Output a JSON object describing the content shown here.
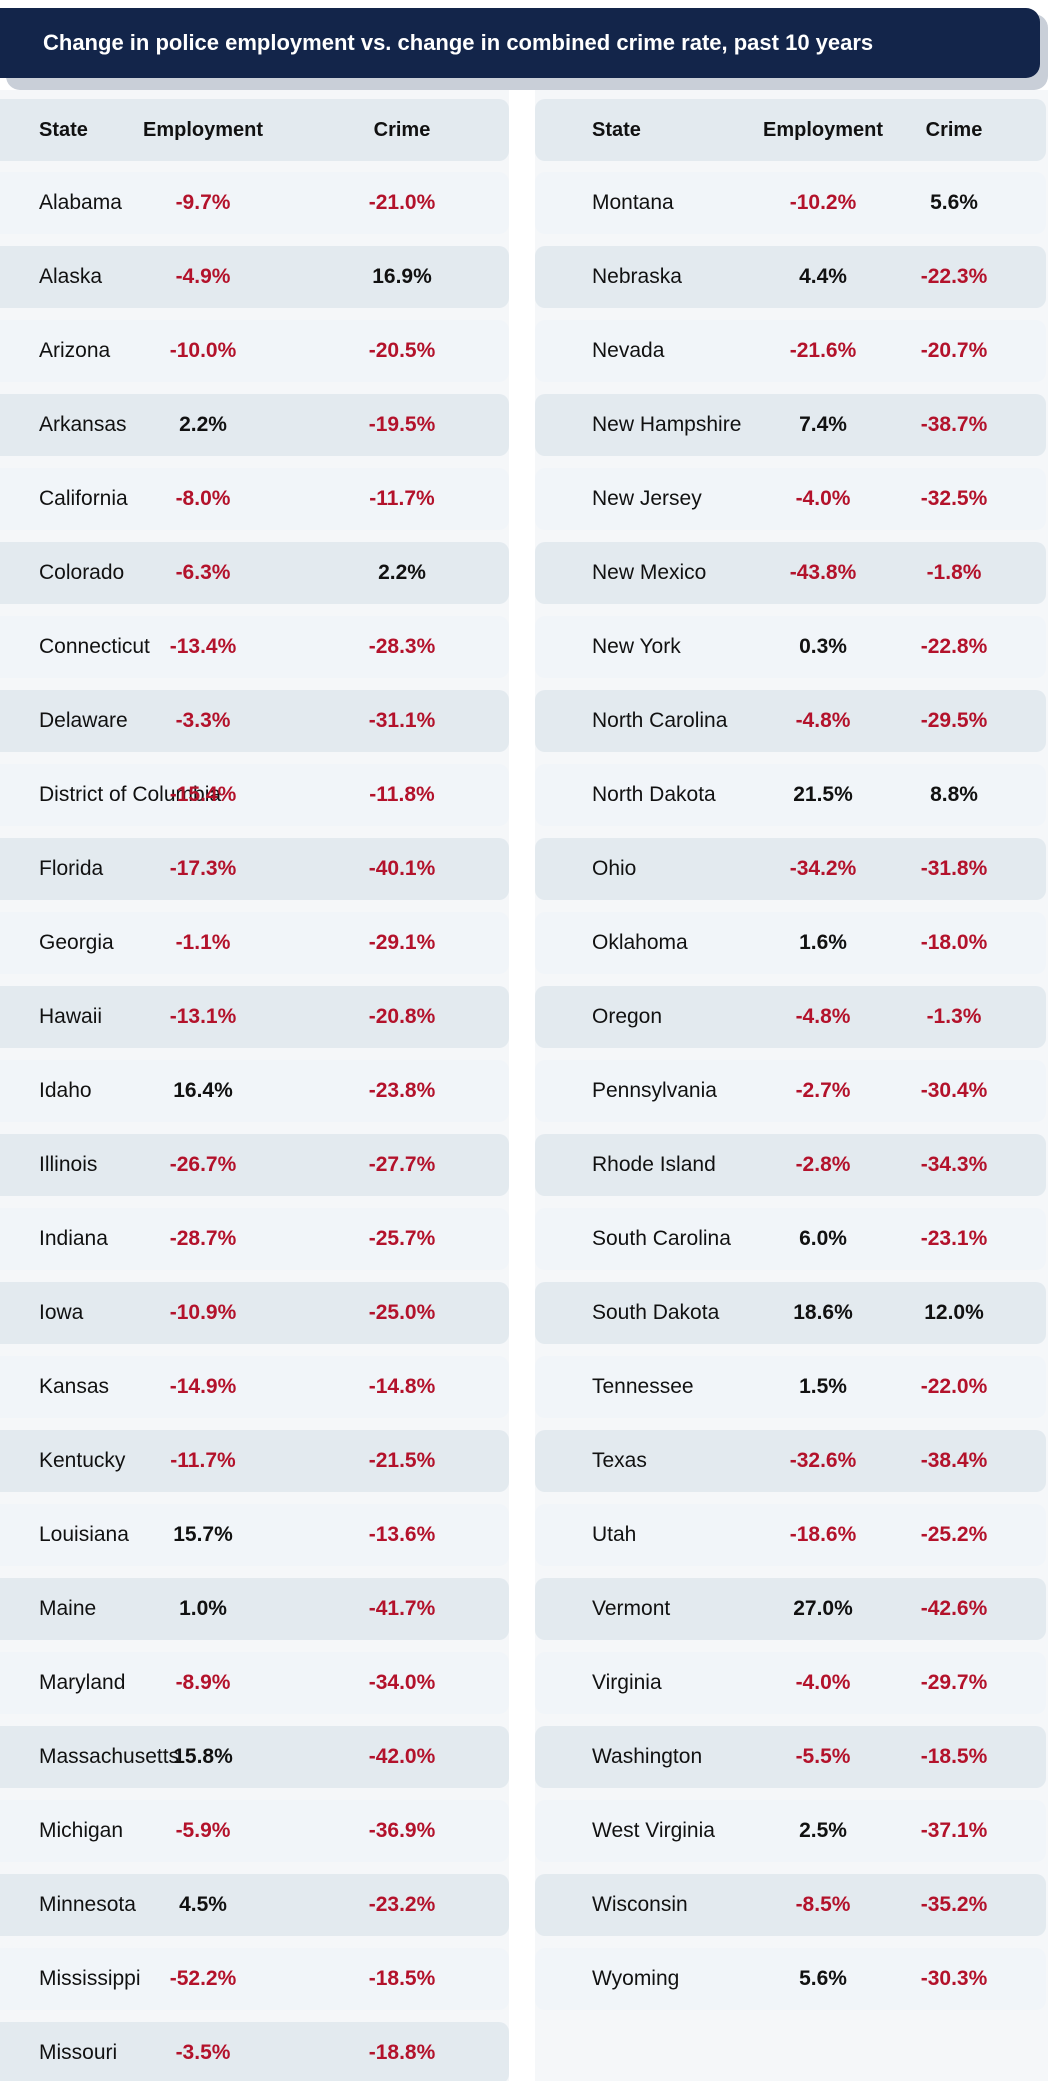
{
  "title": "Change in police employment vs. change in combined crime rate, past 10 years",
  "colors": {
    "title_bg": "#13254a",
    "negative": "#b3122b",
    "positive": "#111111",
    "row_light": "#f1f5f9",
    "row_dark": "#e3eaef"
  },
  "headers": {
    "state": "State",
    "employment": "Employment",
    "crime": "Crime"
  },
  "chart_data": {
    "type": "table",
    "title": "Change in police employment vs. change in combined crime rate, past 10 years",
    "columns": [
      "State",
      "Employment",
      "Crime"
    ],
    "rows": [
      {
        "state": "Alabama",
        "employment": "-9.7%",
        "crime": "-21.0%"
      },
      {
        "state": "Alaska",
        "employment": "-4.9%",
        "crime": "16.9%"
      },
      {
        "state": "Arizona",
        "employment": "-10.0%",
        "crime": "-20.5%"
      },
      {
        "state": "Arkansas",
        "employment": "2.2%",
        "crime": "-19.5%"
      },
      {
        "state": "California",
        "employment": "-8.0%",
        "crime": "-11.7%"
      },
      {
        "state": "Colorado",
        "employment": "-6.3%",
        "crime": "2.2%"
      },
      {
        "state": "Connecticut",
        "employment": "-13.4%",
        "crime": "-28.3%"
      },
      {
        "state": "Delaware",
        "employment": "-3.3%",
        "crime": "-31.1%"
      },
      {
        "state": "District of Columbia",
        "employment": "-15.4%",
        "crime": "-11.8%"
      },
      {
        "state": "Florida",
        "employment": "-17.3%",
        "crime": "-40.1%"
      },
      {
        "state": "Georgia",
        "employment": "-1.1%",
        "crime": "-29.1%"
      },
      {
        "state": "Hawaii",
        "employment": "-13.1%",
        "crime": "-20.8%"
      },
      {
        "state": "Idaho",
        "employment": "16.4%",
        "crime": "-23.8%"
      },
      {
        "state": "Illinois",
        "employment": "-26.7%",
        "crime": "-27.7%"
      },
      {
        "state": "Indiana",
        "employment": "-28.7%",
        "crime": "-25.7%"
      },
      {
        "state": "Iowa",
        "employment": "-10.9%",
        "crime": "-25.0%"
      },
      {
        "state": "Kansas",
        "employment": "-14.9%",
        "crime": "-14.8%"
      },
      {
        "state": "Kentucky",
        "employment": "-11.7%",
        "crime": "-21.5%"
      },
      {
        "state": "Louisiana",
        "employment": "15.7%",
        "crime": "-13.6%"
      },
      {
        "state": "Maine",
        "employment": "1.0%",
        "crime": "-41.7%"
      },
      {
        "state": "Maryland",
        "employment": "-8.9%",
        "crime": "-34.0%"
      },
      {
        "state": "Massachusetts",
        "employment": "15.8%",
        "crime": "-42.0%"
      },
      {
        "state": "Michigan",
        "employment": "-5.9%",
        "crime": "-36.9%"
      },
      {
        "state": "Minnesota",
        "employment": "4.5%",
        "crime": "-23.2%"
      },
      {
        "state": "Mississippi",
        "employment": "-52.2%",
        "crime": "-18.5%"
      },
      {
        "state": "Missouri",
        "employment": "-3.5%",
        "crime": "-18.8%"
      },
      {
        "state": "Montana",
        "employment": "-10.2%",
        "crime": "5.6%"
      },
      {
        "state": "Nebraska",
        "employment": "4.4%",
        "crime": "-22.3%"
      },
      {
        "state": "Nevada",
        "employment": "-21.6%",
        "crime": "-20.7%"
      },
      {
        "state": "New Hampshire",
        "employment": "7.4%",
        "crime": "-38.7%"
      },
      {
        "state": "New Jersey",
        "employment": "-4.0%",
        "crime": "-32.5%"
      },
      {
        "state": "New Mexico",
        "employment": "-43.8%",
        "crime": "-1.8%"
      },
      {
        "state": "New York",
        "employment": "0.3%",
        "crime": "-22.8%"
      },
      {
        "state": "North Carolina",
        "employment": "-4.8%",
        "crime": "-29.5%"
      },
      {
        "state": "North Dakota",
        "employment": "21.5%",
        "crime": "8.8%"
      },
      {
        "state": "Ohio",
        "employment": "-34.2%",
        "crime": "-31.8%"
      },
      {
        "state": "Oklahoma",
        "employment": "1.6%",
        "crime": "-18.0%"
      },
      {
        "state": "Oregon",
        "employment": "-4.8%",
        "crime": "-1.3%"
      },
      {
        "state": "Pennsylvania",
        "employment": "-2.7%",
        "crime": "-30.4%"
      },
      {
        "state": "Rhode Island",
        "employment": "-2.8%",
        "crime": "-34.3%"
      },
      {
        "state": "South Carolina",
        "employment": "6.0%",
        "crime": "-23.1%"
      },
      {
        "state": "South Dakota",
        "employment": "18.6%",
        "crime": "12.0%"
      },
      {
        "state": "Tennessee",
        "employment": "1.5%",
        "crime": "-22.0%"
      },
      {
        "state": "Texas",
        "employment": "-32.6%",
        "crime": "-38.4%"
      },
      {
        "state": "Utah",
        "employment": "-18.6%",
        "crime": "-25.2%"
      },
      {
        "state": "Vermont",
        "employment": "27.0%",
        "crime": "-42.6%"
      },
      {
        "state": "Virginia",
        "employment": "-4.0%",
        "crime": "-29.7%"
      },
      {
        "state": "Washington",
        "employment": "-5.5%",
        "crime": "-18.5%"
      },
      {
        "state": "West Virginia",
        "employment": "2.5%",
        "crime": "-37.1%"
      },
      {
        "state": "Wisconsin",
        "employment": "-8.5%",
        "crime": "-35.2%"
      },
      {
        "state": "Wyoming",
        "employment": "5.6%",
        "crime": "-30.3%"
      }
    ]
  }
}
